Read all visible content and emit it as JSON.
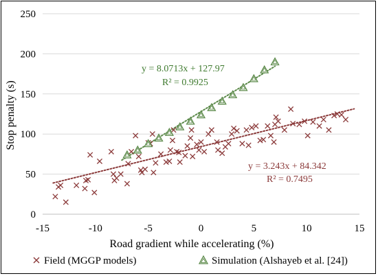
{
  "chart_data": {
    "type": "scatter",
    "xlabel": "Road gradient while accelerating (%)",
    "ylabel": "Stop penalty (s)",
    "xlim": [
      -15,
      15
    ],
    "ylim": [
      0,
      250
    ],
    "xticks": [
      -15,
      -10,
      -5,
      0,
      5,
      10,
      15
    ],
    "yticks": [
      0,
      50,
      100,
      150,
      200,
      250
    ],
    "xtick_labels": [
      "-15",
      "-10",
      "-5",
      "0",
      "5",
      "10",
      "15"
    ],
    "ytick_labels": [
      "0",
      "50",
      "100",
      "150",
      "200",
      "250"
    ],
    "grid": "horizontal",
    "legend_position": "bottom",
    "series": [
      {
        "name": "Field (MGGP models)",
        "marker": "x",
        "color": "#8B3A3A",
        "points": [
          [
            -13.8,
            22
          ],
          [
            -13.5,
            34
          ],
          [
            -13.3,
            36
          ],
          [
            -12.8,
            15
          ],
          [
            -11.8,
            36
          ],
          [
            -11.0,
            32
          ],
          [
            -10.9,
            42
          ],
          [
            -10.7,
            43
          ],
          [
            -10.5,
            74
          ],
          [
            -10.1,
            27
          ],
          [
            -9.6,
            66
          ],
          [
            -8.5,
            78
          ],
          [
            -8.3,
            50
          ],
          [
            -8.2,
            42
          ],
          [
            -8.0,
            45
          ],
          [
            -7.6,
            50
          ],
          [
            -7.0,
            38
          ],
          [
            -6.9,
            63
          ],
          [
            -6.6,
            78
          ],
          [
            -6.2,
            98
          ],
          [
            -5.9,
            72
          ],
          [
            -5.7,
            55
          ],
          [
            -5.6,
            52
          ],
          [
            -5.3,
            56
          ],
          [
            -5.0,
            89
          ],
          [
            -4.8,
            88
          ],
          [
            -4.6,
            100
          ],
          [
            -4.5,
            52
          ],
          [
            -4.3,
            64
          ],
          [
            -3.8,
            75
          ],
          [
            -3.3,
            65
          ],
          [
            -3.0,
            66
          ],
          [
            -2.9,
            80
          ],
          [
            -2.7,
            92
          ],
          [
            -2.6,
            105
          ],
          [
            -2.3,
            78
          ],
          [
            -2.1,
            77
          ],
          [
            -2.0,
            65
          ],
          [
            -1.5,
            73
          ],
          [
            -1.3,
            85
          ],
          [
            -1.0,
            95
          ],
          [
            -0.9,
            105
          ],
          [
            -0.8,
            72
          ],
          [
            -0.4,
            87
          ],
          [
            -0.2,
            80
          ],
          [
            0.0,
            90
          ],
          [
            0.3,
            78
          ],
          [
            0.7,
            100
          ],
          [
            1.0,
            105
          ],
          [
            1.5,
            90
          ],
          [
            1.6,
            80
          ],
          [
            2.0,
            76
          ],
          [
            2.3,
            84
          ],
          [
            2.6,
            88
          ],
          [
            2.9,
            100
          ],
          [
            3.1,
            107
          ],
          [
            3.4,
            104
          ],
          [
            3.9,
            88
          ],
          [
            4.3,
            105
          ],
          [
            4.5,
            86
          ],
          [
            4.8,
            108
          ],
          [
            5.2,
            110
          ],
          [
            5.6,
            92
          ],
          [
            5.9,
            93
          ],
          [
            6.3,
            110
          ],
          [
            6.6,
            98
          ],
          [
            6.9,
            90
          ],
          [
            7.0,
            112
          ],
          [
            7.1,
            121
          ],
          [
            7.3,
            116
          ],
          [
            7.9,
            105
          ],
          [
            8.5,
            131
          ],
          [
            8.7,
            113
          ],
          [
            9.3,
            112
          ],
          [
            9.8,
            116
          ],
          [
            10.1,
            98
          ],
          [
            10.6,
            115
          ],
          [
            11.2,
            110
          ],
          [
            11.6,
            118
          ],
          [
            12.1,
            105
          ],
          [
            12.6,
            123
          ],
          [
            12.9,
            125
          ],
          [
            13.3,
            124
          ],
          [
            13.7,
            118
          ]
        ],
        "trendline": {
          "slope": 3.243,
          "intercept": 84.342,
          "x_range": [
            -14,
            14.5
          ],
          "equation": "y = 3.243x + 84.342",
          "r2": "R² = 0.7495"
        }
      },
      {
        "name": "Simulation (Alshayeb et al. [24])",
        "marker": "triangle",
        "color": "#5C8A4A",
        "points": [
          [
            -7.0,
            74
          ],
          [
            -6.0,
            80
          ],
          [
            -5.0,
            88
          ],
          [
            -4.0,
            95
          ],
          [
            -3.0,
            102
          ],
          [
            -2.0,
            109
          ],
          [
            -1.0,
            116
          ],
          [
            0.0,
            124
          ],
          [
            1.0,
            133
          ],
          [
            2.0,
            141
          ],
          [
            3.0,
            149
          ],
          [
            4.0,
            158
          ],
          [
            5.0,
            169
          ],
          [
            6.0,
            180
          ],
          [
            7.0,
            190
          ]
        ],
        "trendline": {
          "slope": 8.0713,
          "intercept": 127.97,
          "x_range": [
            -7.5,
            7
          ],
          "equation": "y = 8.0713x + 127.97",
          "r2": "R² = 0.9925"
        }
      }
    ]
  },
  "colors": {
    "field": "#8B3A3A",
    "simulation": "#5C8A4A",
    "field_text": "#8B3A3A",
    "simulation_text": "#3E7A2E",
    "grid": "#d9d9d9",
    "axis": "#000000"
  }
}
